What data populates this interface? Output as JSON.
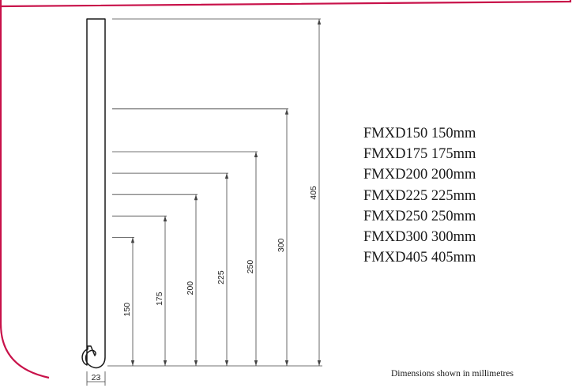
{
  "frame": {
    "border_color": "#c8124a"
  },
  "diagram": {
    "width_label": "23",
    "heights": [
      {
        "label": "150",
        "value": 150
      },
      {
        "label": "175",
        "value": 175
      },
      {
        "label": "200",
        "value": 200
      },
      {
        "label": "225",
        "value": 225
      },
      {
        "label": "250",
        "value": 250
      },
      {
        "label": "300",
        "value": 300
      },
      {
        "label": "405",
        "value": 405
      }
    ]
  },
  "products": [
    {
      "text": "FMXD150 150mm"
    },
    {
      "text": "FMXD175 175mm"
    },
    {
      "text": "FMXD200 200mm"
    },
    {
      "text": "FMXD225 225mm"
    },
    {
      "text": "FMXD250 250mm"
    },
    {
      "text": "FMXD300 300mm"
    },
    {
      "text": "FMXD405 405mm"
    }
  ],
  "footnote": "Dimensions shown in millimetres"
}
